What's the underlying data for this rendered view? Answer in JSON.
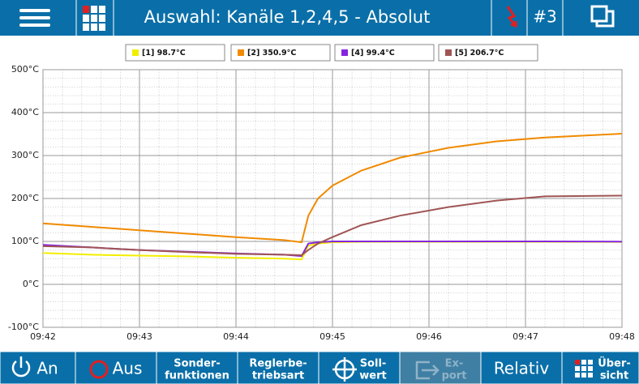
{
  "header": {
    "title": "Auswahl: Kanäle 1,2,4,5 - Absolut",
    "page": "#3"
  },
  "chart_data": {
    "type": "line",
    "x": [
      582,
      582.5,
      583,
      583.5,
      584,
      584.5,
      584.68,
      584.75,
      584.85,
      585,
      585.3,
      585.7,
      586.2,
      586.7,
      587.2,
      588
    ],
    "series": [
      {
        "name": "[1] 98.7°C",
        "color": "#f2ee00",
        "values": [
          73,
          69,
          67,
          65,
          62,
          60,
          58,
          90,
          95,
          98,
          99,
          99,
          99,
          99,
          99,
          98.7
        ]
      },
      {
        "name": "[2] 350.9°C",
        "color": "#f08a00",
        "values": [
          142,
          134,
          126,
          118,
          110,
          103,
          98,
          160,
          200,
          230,
          265,
          295,
          318,
          333,
          342,
          350.9
        ]
      },
      {
        "name": "[4] 99.4°C",
        "color": "#8424e0",
        "values": [
          92,
          86,
          80,
          76,
          72,
          69,
          66,
          95,
          98,
          100,
          100,
          100,
          100,
          100,
          100,
          99.4
        ]
      },
      {
        "name": "[5] 206.7°C",
        "color": "#a05555",
        "values": [
          89,
          86,
          80,
          75,
          71,
          69,
          68,
          80,
          95,
          110,
          138,
          160,
          180,
          195,
          205,
          206.7
        ]
      }
    ],
    "xlim": [
      582,
      588
    ],
    "xticks": [
      {
        "value": 582,
        "label": "09:42"
      },
      {
        "value": 583,
        "label": "09:43"
      },
      {
        "value": 584,
        "label": "09:44"
      },
      {
        "value": 585,
        "label": "09:45"
      },
      {
        "value": 586,
        "label": "09:46"
      },
      {
        "value": 587,
        "label": "09:47"
      },
      {
        "value": 588,
        "label": "09:48"
      }
    ],
    "ylim": [
      -100,
      500
    ],
    "yticks": [
      {
        "value": -100,
        "label": "-100°C"
      },
      {
        "value": 0,
        "label": "0°C"
      },
      {
        "value": 100,
        "label": "100°C"
      },
      {
        "value": 200,
        "label": "200°C"
      },
      {
        "value": 300,
        "label": "300°C"
      },
      {
        "value": 400,
        "label": "400°C"
      },
      {
        "value": 500,
        "label": "500°C"
      }
    ],
    "grid": true
  },
  "footer": {
    "buttons": [
      {
        "lines": [
          "An"
        ]
      },
      {
        "lines": [
          "Aus"
        ]
      },
      {
        "lines": [
          "Sonder-",
          "funktionen"
        ]
      },
      {
        "lines": [
          "Reglerbe-",
          "triebsart"
        ]
      },
      {
        "lines": [
          "Soll-",
          "wert"
        ]
      },
      {
        "lines": [
          "Ex-",
          "port"
        ]
      },
      {
        "lines": [
          "Relativ"
        ]
      },
      {
        "lines": [
          "Über-",
          "sicht"
        ]
      }
    ]
  }
}
